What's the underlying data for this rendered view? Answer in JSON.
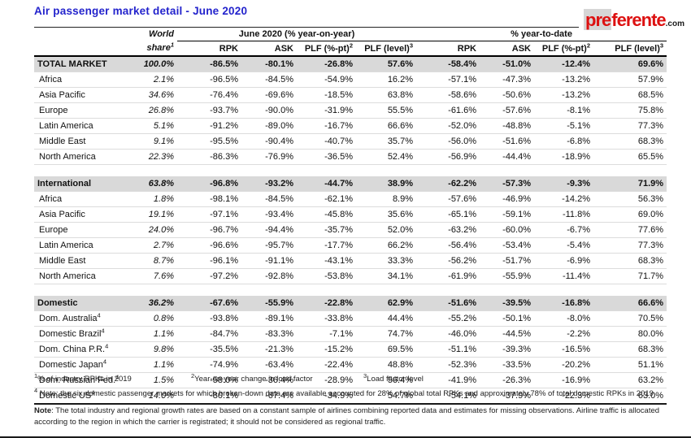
{
  "title": "Air passenger market detail - June 2020",
  "logo": {
    "pre": "pre",
    "rest": "ferente",
    "tld": ".com"
  },
  "colors": {
    "title_blue": "#2323cc",
    "logo_red": "#dd1111",
    "section_row_bg": "#d9d9d9"
  },
  "table": {
    "world_share_header": {
      "line1": "World",
      "line2": "share",
      "sup": "1"
    },
    "group_headers": [
      "June 2020 (% year-on-year)",
      "% year-to-date"
    ],
    "sub_headers": [
      {
        "label": "RPK",
        "sup": ""
      },
      {
        "label": "ASK",
        "sup": ""
      },
      {
        "label": "PLF (%-pt)",
        "sup": "2"
      },
      {
        "label": "PLF (level)",
        "sup": "3"
      }
    ],
    "value_order": [
      "world_share",
      "jun_rpk",
      "jun_ask",
      "jun_plf_pt",
      "jun_plf_level",
      "ytd_rpk",
      "ytd_ask",
      "ytd_plf_pt",
      "ytd_plf_level"
    ],
    "sections": [
      {
        "header": {
          "label": "TOTAL MARKET",
          "sup": "",
          "values": [
            "100.0%",
            "-86.5%",
            "-80.1%",
            "-26.8%",
            "57.6%",
            "-58.4%",
            "-51.0%",
            "-12.4%",
            "69.6%"
          ]
        },
        "rows": [
          {
            "label": "Africa",
            "sup": "",
            "values": [
              "2.1%",
              "-96.5%",
              "-84.5%",
              "-54.9%",
              "16.2%",
              "-57.1%",
              "-47.3%",
              "-13.2%",
              "57.9%"
            ]
          },
          {
            "label": "Asia Pacific",
            "sup": "",
            "values": [
              "34.6%",
              "-76.4%",
              "-69.6%",
              "-18.5%",
              "63.8%",
              "-58.6%",
              "-50.6%",
              "-13.2%",
              "68.5%"
            ]
          },
          {
            "label": "Europe",
            "sup": "",
            "values": [
              "26.8%",
              "-93.7%",
              "-90.0%",
              "-31.9%",
              "55.5%",
              "-61.6%",
              "-57.6%",
              "-8.1%",
              "75.8%"
            ]
          },
          {
            "label": "Latin America",
            "sup": "",
            "values": [
              "5.1%",
              "-91.2%",
              "-89.0%",
              "-16.7%",
              "66.6%",
              "-52.0%",
              "-48.8%",
              "-5.1%",
              "77.3%"
            ]
          },
          {
            "label": "Middle East",
            "sup": "",
            "values": [
              "9.1%",
              "-95.5%",
              "-90.4%",
              "-40.7%",
              "35.7%",
              "-56.0%",
              "-51.6%",
              "-6.8%",
              "68.3%"
            ]
          },
          {
            "label": "North America",
            "sup": "",
            "values": [
              "22.3%",
              "-86.3%",
              "-76.9%",
              "-36.5%",
              "52.4%",
              "-56.9%",
              "-44.4%",
              "-18.9%",
              "65.5%"
            ]
          }
        ]
      },
      {
        "header": {
          "label": "International",
          "sup": "",
          "values": [
            "63.8%",
            "-96.8%",
            "-93.2%",
            "-44.7%",
            "38.9%",
            "-62.2%",
            "-57.3%",
            "-9.3%",
            "71.9%"
          ]
        },
        "rows": [
          {
            "label": "Africa",
            "sup": "",
            "values": [
              "1.8%",
              "-98.1%",
              "-84.5%",
              "-62.1%",
              "8.9%",
              "-57.6%",
              "-46.9%",
              "-14.2%",
              "56.3%"
            ]
          },
          {
            "label": "Asia Pacific",
            "sup": "",
            "values": [
              "19.1%",
              "-97.1%",
              "-93.4%",
              "-45.8%",
              "35.6%",
              "-65.1%",
              "-59.1%",
              "-11.8%",
              "69.0%"
            ]
          },
          {
            "label": "Europe",
            "sup": "",
            "values": [
              "24.0%",
              "-96.7%",
              "-94.4%",
              "-35.7%",
              "52.0%",
              "-63.2%",
              "-60.0%",
              "-6.7%",
              "77.6%"
            ]
          },
          {
            "label": "Latin America",
            "sup": "",
            "values": [
              "2.7%",
              "-96.6%",
              "-95.7%",
              "-17.7%",
              "66.2%",
              "-56.4%",
              "-53.4%",
              "-5.4%",
              "77.3%"
            ]
          },
          {
            "label": "Middle East",
            "sup": "",
            "values": [
              "8.7%",
              "-96.1%",
              "-91.1%",
              "-43.1%",
              "33.3%",
              "-56.2%",
              "-51.7%",
              "-6.9%",
              "68.3%"
            ]
          },
          {
            "label": "North America",
            "sup": "",
            "values": [
              "7.6%",
              "-97.2%",
              "-92.8%",
              "-53.8%",
              "34.1%",
              "-61.9%",
              "-55.9%",
              "-11.4%",
              "71.7%"
            ]
          }
        ]
      },
      {
        "header": {
          "label": "Domestic",
          "sup": "",
          "values": [
            "36.2%",
            "-67.6%",
            "-55.9%",
            "-22.8%",
            "62.9%",
            "-51.6%",
            "-39.5%",
            "-16.8%",
            "66.6%"
          ]
        },
        "rows": [
          {
            "label": "Dom. Australia",
            "sup": "4",
            "values": [
              "0.8%",
              "-93.8%",
              "-89.1%",
              "-33.8%",
              "44.4%",
              "-55.2%",
              "-50.1%",
              "-8.0%",
              "70.5%"
            ]
          },
          {
            "label": "Domestic Brazil",
            "sup": "4",
            "values": [
              "1.1%",
              "-84.7%",
              "-83.3%",
              "-7.1%",
              "74.7%",
              "-46.0%",
              "-44.5%",
              "-2.2%",
              "80.0%"
            ]
          },
          {
            "label": "Dom. China P.R.",
            "sup": "4",
            "values": [
              "9.8%",
              "-35.5%",
              "-21.3%",
              "-15.2%",
              "69.5%",
              "-51.1%",
              "-39.3%",
              "-16.5%",
              "68.3%"
            ]
          },
          {
            "label": "Domestic Japan",
            "sup": "4",
            "values": [
              "1.1%",
              "-74.9%",
              "-63.4%",
              "-22.4%",
              "48.8%",
              "-52.3%",
              "-33.5%",
              "-20.2%",
              "51.1%"
            ]
          },
          {
            "label": "Dom. Russian Fed.",
            "sup": "4",
            "values": [
              "1.5%",
              "-58.0%",
              "-36.4%",
              "-28.9%",
              "56.4%",
              "-41.9%",
              "-26.3%",
              "-16.9%",
              "63.2%"
            ]
          },
          {
            "label": "Domestic US",
            "sup": "4",
            "values": [
              "14.0%",
              "-80.1%",
              "-67.4%",
              "-34.9%",
              "54.7%",
              "-54.1%",
              "-37.9%",
              "-22.3%",
              "63.0%"
            ]
          }
        ]
      }
    ]
  },
  "footnotes": {
    "items": [
      {
        "sup": "1",
        "text": "% of industry RPKs in 2019"
      },
      {
        "sup": "2",
        "text": "Year-on-year change in load factor"
      },
      {
        "sup": "3",
        "text": "Load factor level"
      }
    ],
    "note4": {
      "sup": "4",
      "text": " Note: the six domestic passenger markets for which broken-down data are available accounted for 28% of global total RPKs and approximately 78% of total domestic RPKs in 2019"
    },
    "main_note": {
      "bold": "Note",
      "text": ": The total industry and regional growth rates are based on a constant sample of airlines combining reported data and estimates for missing observations. Airline traffic is allocated according to the region in which the carrier is registrated; it should not be considered as regional traffic."
    }
  }
}
